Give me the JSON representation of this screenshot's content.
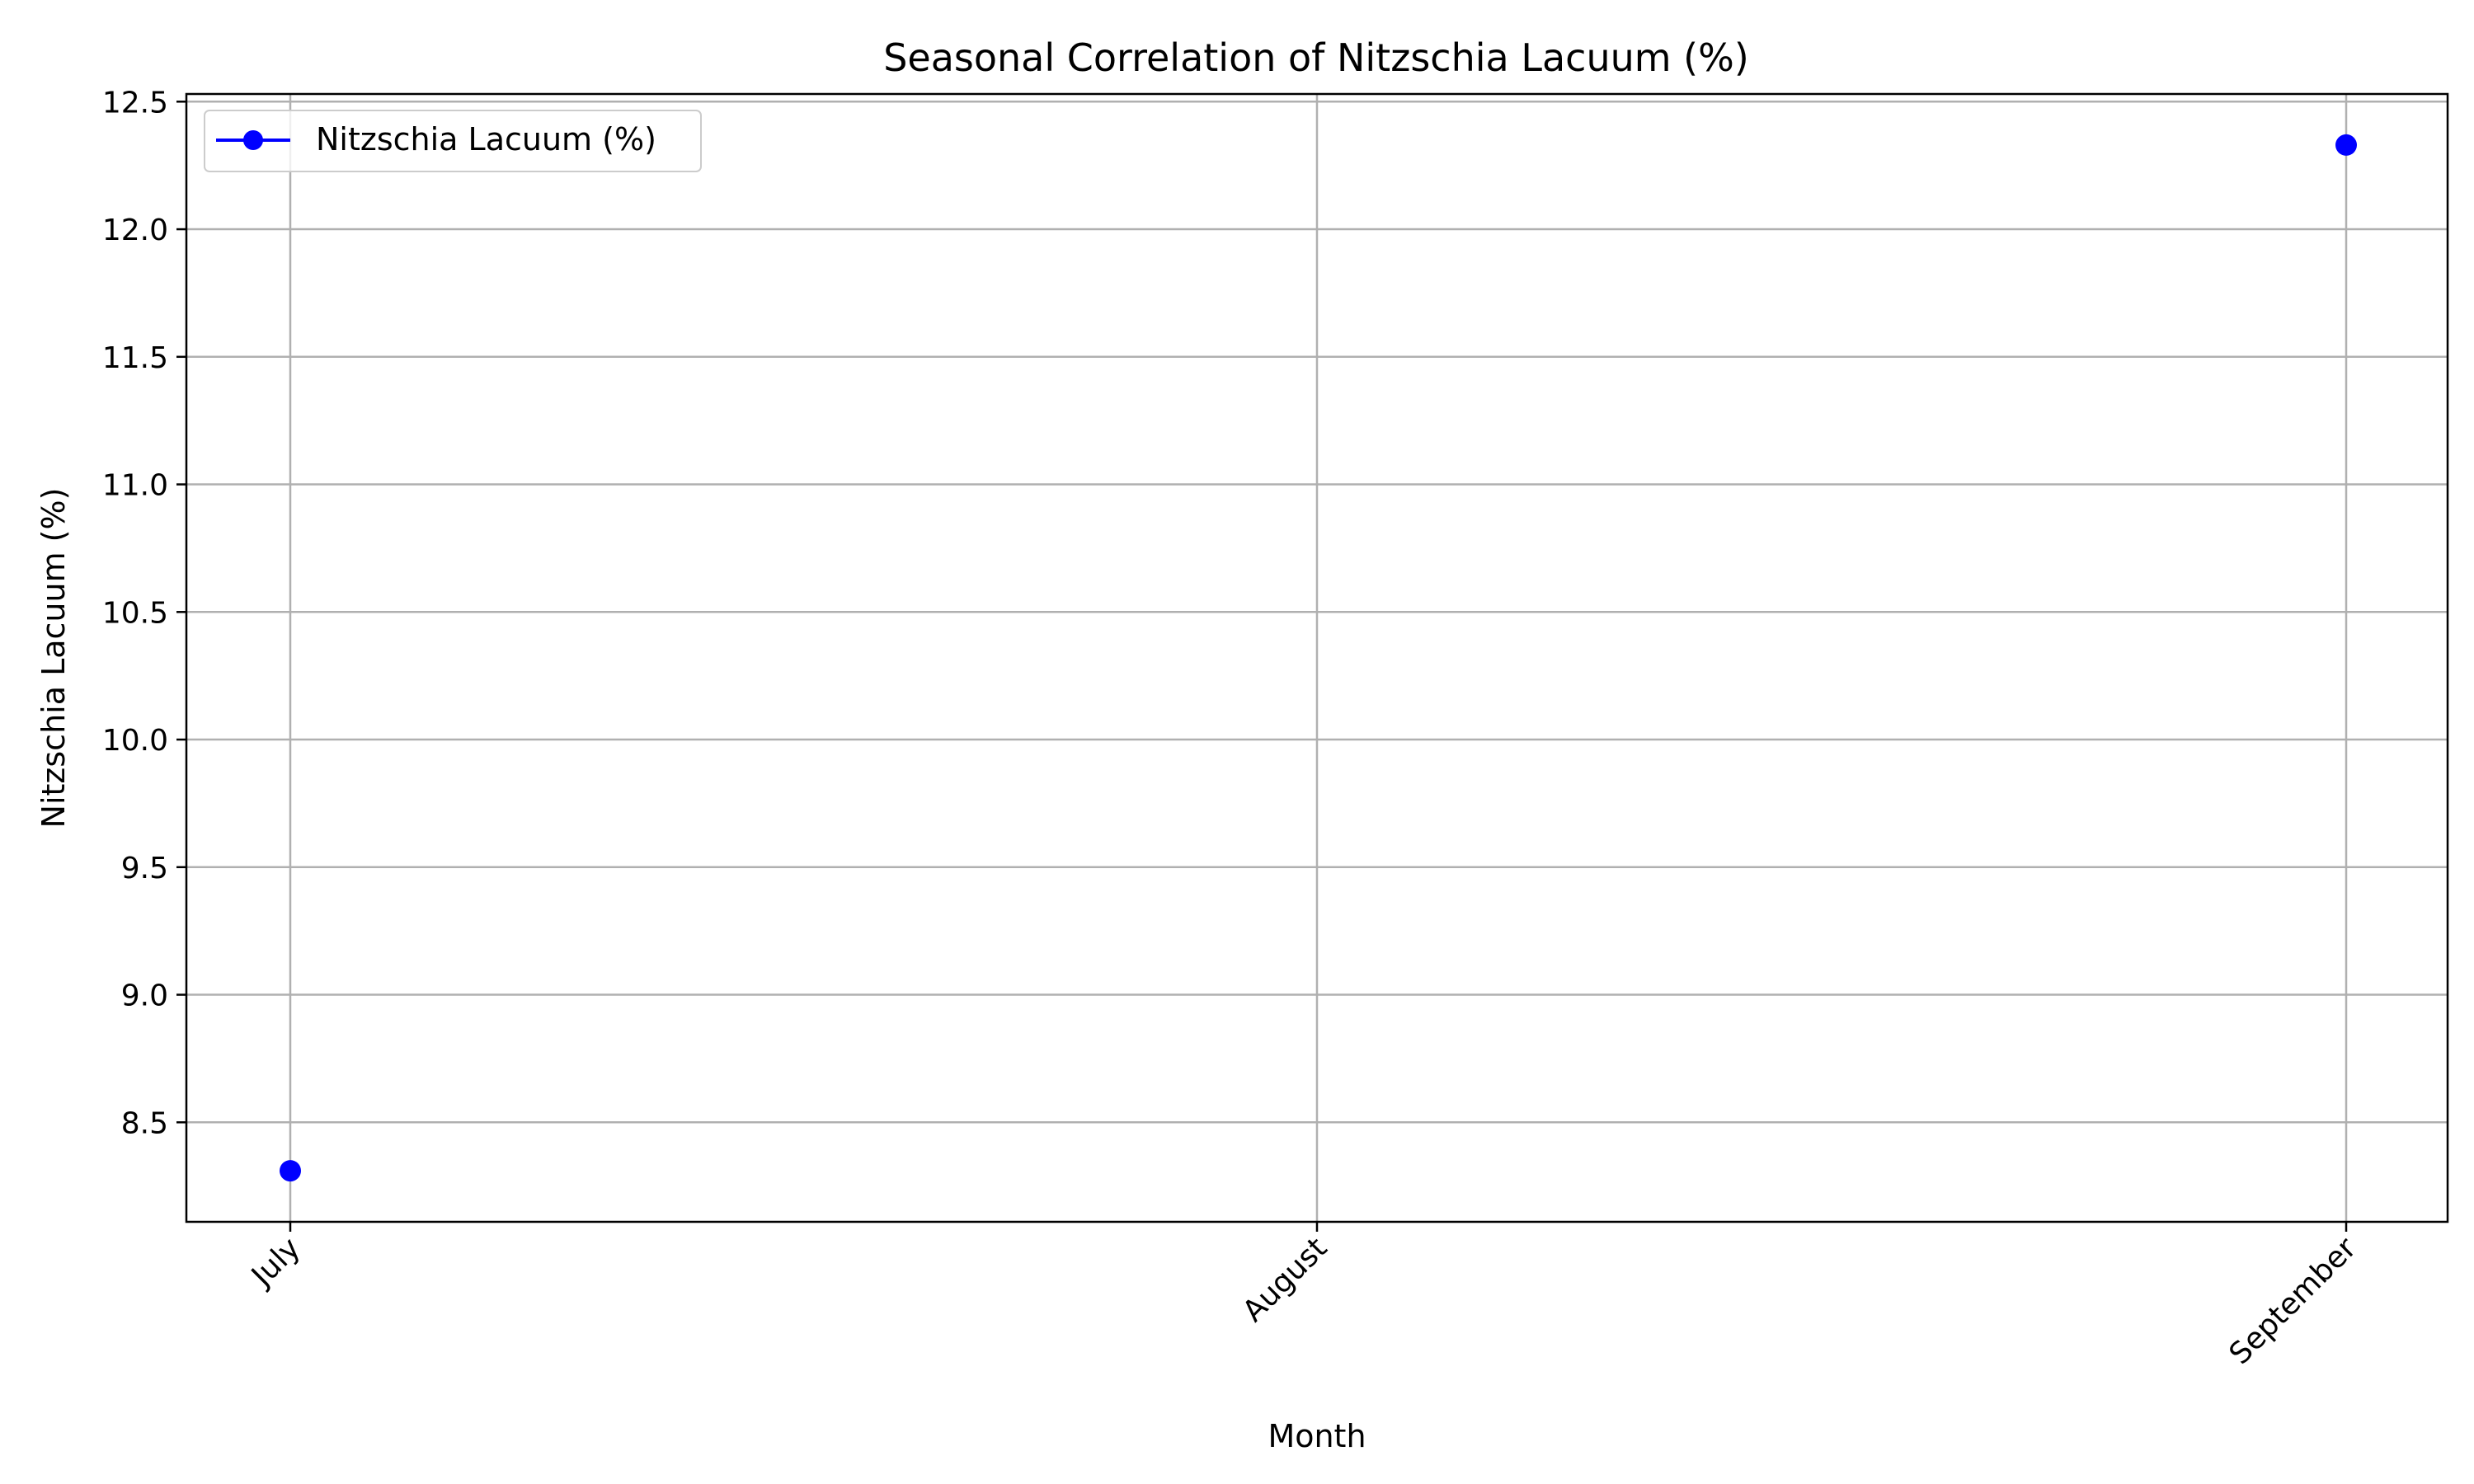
{
  "chart_data": {
    "type": "line",
    "title": "Seasonal Correlation of Nitzschia Lacuum (%)",
    "xlabel": "Month",
    "ylabel": "Nitzschia Lacuum (%)",
    "categories": [
      "July",
      "August",
      "September"
    ],
    "series": [
      {
        "name": "Nitzschia Lacuum (%)",
        "color": "#0000ff",
        "marker": "circle",
        "points": [
          {
            "x": "July",
            "y": 8.31
          },
          {
            "x": "September",
            "y": 12.33
          }
        ]
      }
    ],
    "ylim": [
      8.11,
      12.53
    ],
    "yticks": [
      "8.5",
      "9.0",
      "9.5",
      "10.0",
      "10.5",
      "11.0",
      "11.5",
      "12.0",
      "12.5"
    ],
    "grid": true,
    "legend_position": "upper-left",
    "x_tick_rotation_deg": 45
  }
}
